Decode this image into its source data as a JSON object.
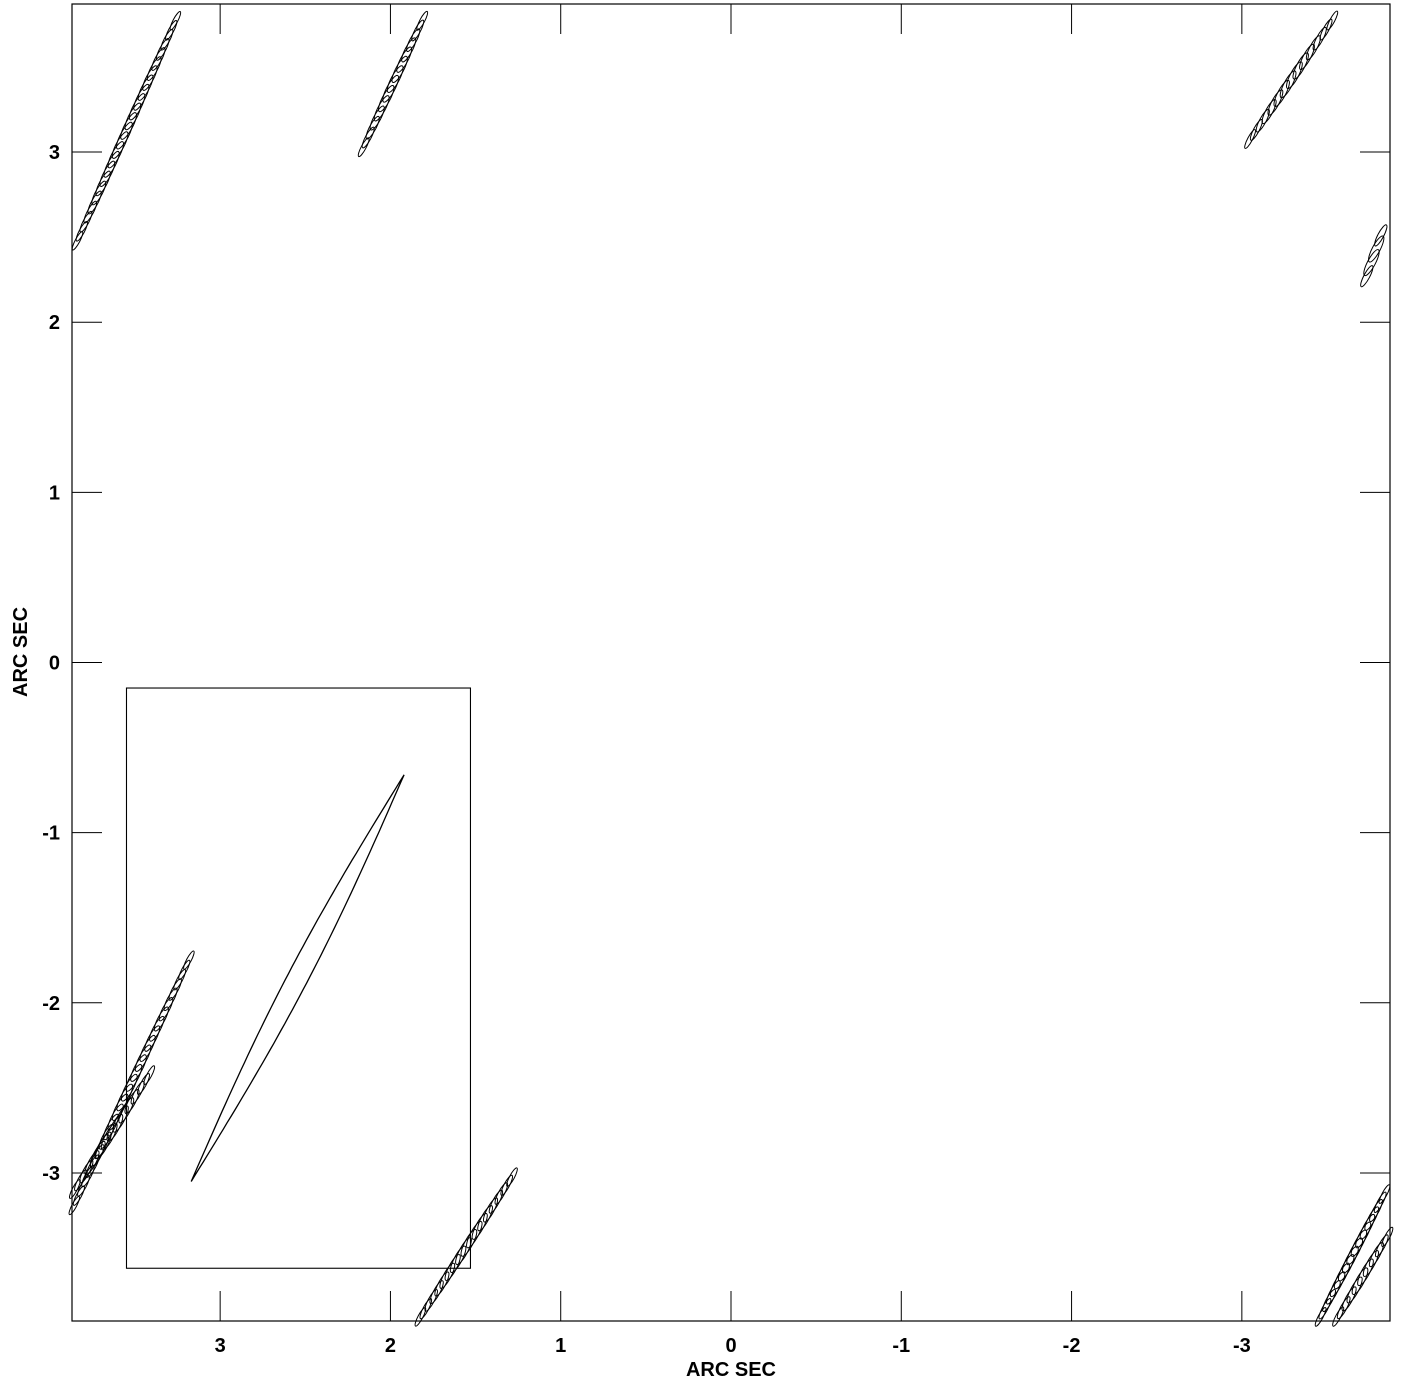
{
  "chart_data": {
    "type": "contour",
    "xlabel": "ARC SEC",
    "ylabel": "ARC SEC",
    "xlim": [
      3.87,
      -3.87
    ],
    "ylim": [
      -3.87,
      3.87
    ],
    "x_ticks": [
      3,
      2,
      1,
      0,
      -1,
      -2,
      -3
    ],
    "y_ticks": [
      3,
      2,
      1,
      0,
      -1,
      -2,
      -3
    ],
    "x_tick_labels": [
      "3",
      "2",
      "1",
      "0",
      "-1",
      "-2",
      "-3"
    ],
    "y_tick_labels": [
      "3",
      "2",
      "1",
      "0",
      "-1",
      "-2",
      "-3"
    ],
    "beam_box": {
      "x0": 3.55,
      "x1": 1.53,
      "y0": -3.56,
      "y1": -0.15
    },
    "beam_ellipse": {
      "x_start": 3.17,
      "y_start": -3.05,
      "x_end": 1.92,
      "y_end": -0.66,
      "minor_half_width": 0.06
    },
    "sidelobe_bands": [
      {
        "x0": 3.85,
        "y0": 2.45,
        "x1": 3.25,
        "y1": 3.8,
        "count": 24
      },
      {
        "x0": 2.17,
        "y0": 3.0,
        "x1": 1.8,
        "y1": 3.8,
        "count": 14
      },
      {
        "x0": -3.03,
        "y0": 3.05,
        "x1": -3.55,
        "y1": 3.8,
        "count": 14
      },
      {
        "x0": -3.72,
        "y0": 2.23,
        "x1": -3.83,
        "y1": 2.55,
        "count": 4
      },
      {
        "x0": 3.87,
        "y0": -3.22,
        "x1": 3.17,
        "y1": -1.72,
        "count": 26
      },
      {
        "x0": 3.87,
        "y0": -3.12,
        "x1": 3.4,
        "y1": -2.4,
        "count": 14
      },
      {
        "x0": 1.84,
        "y0": -3.87,
        "x1": 1.27,
        "y1": -3.0,
        "count": 18
      },
      {
        "x0": -3.45,
        "y0": -3.87,
        "x1": -3.85,
        "y1": -3.1,
        "count": 16
      },
      {
        "x0": -3.55,
        "y0": -3.87,
        "x1": -3.87,
        "y1": -3.35,
        "count": 10
      }
    ]
  }
}
